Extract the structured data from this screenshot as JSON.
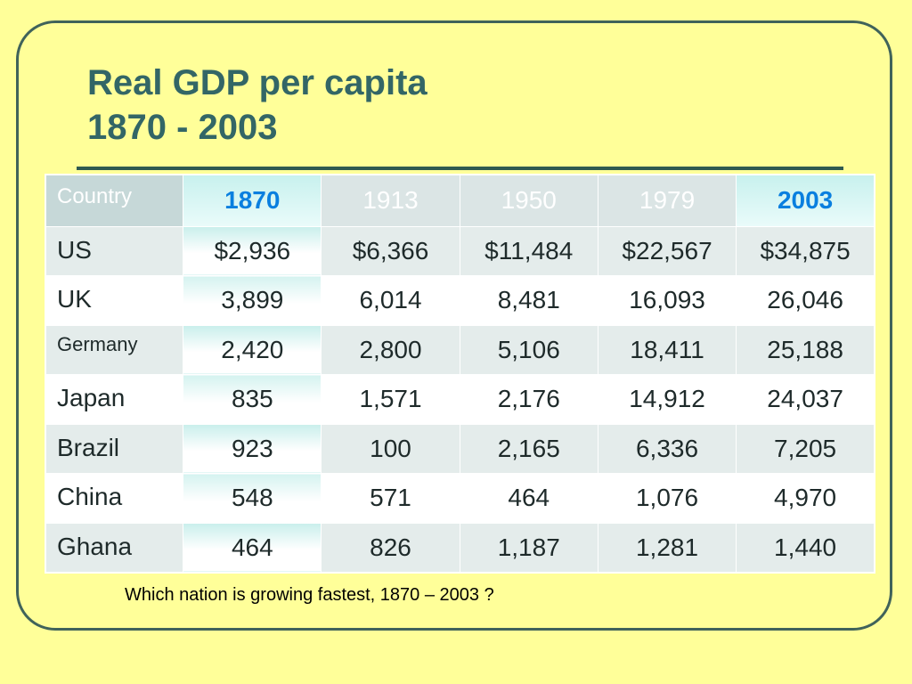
{
  "slide": {
    "title_line1": "Real GDP per capita",
    "title_line2": "1870 - 2003",
    "question": "Which nation is growing fastest, 1870 – 2003 ?"
  },
  "colors": {
    "background": "#ffff99",
    "title": "#336666",
    "frame_border": "#40635a",
    "highlight_year": "#0a7fdf",
    "header_bg": "#dbe5e5"
  },
  "table": {
    "header": {
      "country": "Country",
      "years": [
        "1870",
        "1913",
        "1950",
        "1979",
        "2003"
      ],
      "highlighted_years": [
        "1870",
        "2003"
      ]
    },
    "rows": [
      {
        "country": "US",
        "values": [
          "$2,936",
          "$6,366",
          "$11,484",
          "$22,567",
          "$34,875"
        ]
      },
      {
        "country": "UK",
        "values": [
          "3,899",
          "6,014",
          "8,481",
          "16,093",
          "26,046"
        ]
      },
      {
        "country": "Germany",
        "values": [
          "2,420",
          "2,800",
          "5,106",
          "18,411",
          "25,188"
        ]
      },
      {
        "country": "Japan",
        "values": [
          "835",
          "1,571",
          "2,176",
          "14,912",
          "24,037"
        ]
      },
      {
        "country": "Brazil",
        "values": [
          "923",
          "100",
          "2,165",
          "6,336",
          "7,205"
        ]
      },
      {
        "country": "China",
        "values": [
          "548",
          "571",
          "464",
          "1,076",
          "4,970"
        ]
      },
      {
        "country": "Ghana",
        "values": [
          "464",
          "826",
          "1,187",
          "1,281",
          "1,440"
        ]
      }
    ]
  }
}
